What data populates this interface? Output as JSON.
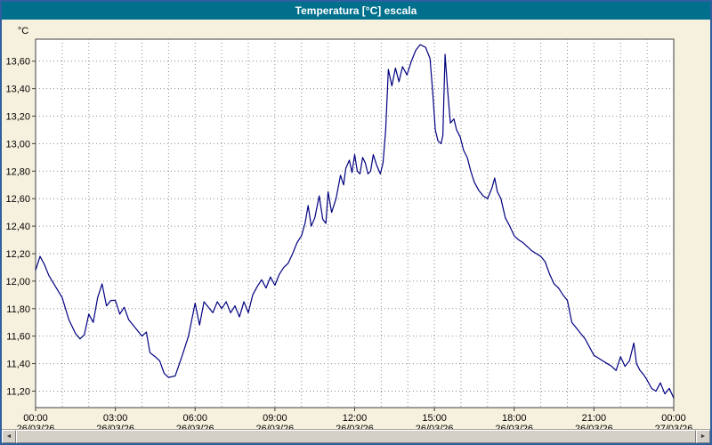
{
  "window": {
    "title": "Temperatura [°C] escala"
  },
  "colors": {
    "titlebar": "#00708d",
    "window_border": "#2f5f9e",
    "background": "#f6f1de",
    "plot_background": "#ffffff",
    "grid": "#8c8c8c",
    "axis": "#404040",
    "line": "#000080",
    "label_text": "#000000",
    "scrollbar_face": "#d4d0c8"
  },
  "scrollbar": {
    "left_arrow": "◄",
    "right_arrow": "►"
  },
  "chart_data": {
    "type": "line",
    "title": "Temperatura [°C] escala",
    "xlabel": "",
    "ylabel": "°C",
    "ylim": [
      11.08,
      13.76
    ],
    "x_range_minutes": [
      0,
      1440
    ],
    "x_minor_grid_minutes": 60,
    "grid": true,
    "legend": "none",
    "y_ticks": [
      {
        "v": 13.6,
        "label": "13,60"
      },
      {
        "v": 13.4,
        "label": "13,40"
      },
      {
        "v": 13.2,
        "label": "13,20"
      },
      {
        "v": 13.0,
        "label": "13,00"
      },
      {
        "v": 12.8,
        "label": "12,80"
      },
      {
        "v": 12.6,
        "label": "12,60"
      },
      {
        "v": 12.4,
        "label": "12,40"
      },
      {
        "v": 12.2,
        "label": "12,20"
      },
      {
        "v": 12.0,
        "label": "12,00"
      },
      {
        "v": 11.8,
        "label": "11,80"
      },
      {
        "v": 11.6,
        "label": "11,60"
      },
      {
        "v": 11.4,
        "label": "11,40"
      },
      {
        "v": 11.2,
        "label": "11,20"
      }
    ],
    "x_ticks": [
      {
        "m": 0,
        "time": "00:00",
        "date": "26/03/26"
      },
      {
        "m": 180,
        "time": "03:00",
        "date": "26/03/26"
      },
      {
        "m": 360,
        "time": "06:00",
        "date": "26/03/26"
      },
      {
        "m": 540,
        "time": "09:00",
        "date": "26/03/26"
      },
      {
        "m": 720,
        "time": "12:00",
        "date": "26/03/26"
      },
      {
        "m": 900,
        "time": "15:00",
        "date": "26/03/26"
      },
      {
        "m": 1080,
        "time": "18:00",
        "date": "26/03/26"
      },
      {
        "m": 1260,
        "time": "21:00",
        "date": "26/03/26"
      },
      {
        "m": 1440,
        "time": "00:00",
        "date": "27/03/26"
      }
    ],
    "series": [
      {
        "name": "Temperatura",
        "color": "#000080",
        "points": [
          [
            0,
            12.08
          ],
          [
            10,
            12.18
          ],
          [
            20,
            12.12
          ],
          [
            30,
            12.04
          ],
          [
            45,
            11.96
          ],
          [
            60,
            11.88
          ],
          [
            75,
            11.72
          ],
          [
            90,
            11.62
          ],
          [
            100,
            11.58
          ],
          [
            110,
            11.61
          ],
          [
            120,
            11.76
          ],
          [
            130,
            11.7
          ],
          [
            140,
            11.88
          ],
          [
            150,
            11.98
          ],
          [
            160,
            11.82
          ],
          [
            170,
            11.86
          ],
          [
            180,
            11.86
          ],
          [
            190,
            11.76
          ],
          [
            200,
            11.81
          ],
          [
            210,
            11.72
          ],
          [
            225,
            11.66
          ],
          [
            240,
            11.6
          ],
          [
            250,
            11.63
          ],
          [
            258,
            11.48
          ],
          [
            270,
            11.45
          ],
          [
            280,
            11.42
          ],
          [
            290,
            11.33
          ],
          [
            300,
            11.3
          ],
          [
            315,
            11.31
          ],
          [
            330,
            11.45
          ],
          [
            345,
            11.6
          ],
          [
            355,
            11.76
          ],
          [
            360,
            11.84
          ],
          [
            370,
            11.68
          ],
          [
            380,
            11.85
          ],
          [
            390,
            11.81
          ],
          [
            400,
            11.77
          ],
          [
            410,
            11.85
          ],
          [
            420,
            11.8
          ],
          [
            430,
            11.85
          ],
          [
            440,
            11.77
          ],
          [
            450,
            11.82
          ],
          [
            460,
            11.74
          ],
          [
            470,
            11.85
          ],
          [
            480,
            11.77
          ],
          [
            490,
            11.9
          ],
          [
            500,
            11.96
          ],
          [
            510,
            12.01
          ],
          [
            520,
            11.95
          ],
          [
            530,
            12.03
          ],
          [
            540,
            11.97
          ],
          [
            550,
            12.05
          ],
          [
            560,
            12.1
          ],
          [
            570,
            12.13
          ],
          [
            580,
            12.2
          ],
          [
            590,
            12.28
          ],
          [
            600,
            12.33
          ],
          [
            608,
            12.42
          ],
          [
            615,
            12.55
          ],
          [
            622,
            12.4
          ],
          [
            630,
            12.46
          ],
          [
            640,
            12.62
          ],
          [
            648,
            12.45
          ],
          [
            655,
            12.42
          ],
          [
            660,
            12.65
          ],
          [
            668,
            12.5
          ],
          [
            678,
            12.6
          ],
          [
            688,
            12.77
          ],
          [
            695,
            12.7
          ],
          [
            700,
            12.82
          ],
          [
            708,
            12.88
          ],
          [
            714,
            12.79
          ],
          [
            720,
            12.92
          ],
          [
            726,
            12.8
          ],
          [
            732,
            12.78
          ],
          [
            738,
            12.9
          ],
          [
            744,
            12.86
          ],
          [
            750,
            12.78
          ],
          [
            756,
            12.8
          ],
          [
            762,
            12.92
          ],
          [
            770,
            12.84
          ],
          [
            778,
            12.78
          ],
          [
            784,
            12.86
          ],
          [
            790,
            13.1
          ],
          [
            796,
            13.54
          ],
          [
            804,
            13.42
          ],
          [
            812,
            13.55
          ],
          [
            820,
            13.45
          ],
          [
            828,
            13.56
          ],
          [
            838,
            13.5
          ],
          [
            848,
            13.6
          ],
          [
            858,
            13.68
          ],
          [
            868,
            13.72
          ],
          [
            880,
            13.7
          ],
          [
            890,
            13.62
          ],
          [
            896,
            13.38
          ],
          [
            902,
            13.1
          ],
          [
            908,
            13.02
          ],
          [
            915,
            13.0
          ],
          [
            919,
            13.06
          ],
          [
            924,
            13.65
          ],
          [
            930,
            13.38
          ],
          [
            936,
            13.15
          ],
          [
            944,
            13.18
          ],
          [
            950,
            13.1
          ],
          [
            958,
            13.05
          ],
          [
            966,
            12.95
          ],
          [
            974,
            12.9
          ],
          [
            982,
            12.8
          ],
          [
            990,
            12.72
          ],
          [
            1000,
            12.66
          ],
          [
            1010,
            12.62
          ],
          [
            1020,
            12.6
          ],
          [
            1030,
            12.68
          ],
          [
            1036,
            12.75
          ],
          [
            1042,
            12.65
          ],
          [
            1050,
            12.6
          ],
          [
            1060,
            12.46
          ],
          [
            1070,
            12.4
          ],
          [
            1080,
            12.33
          ],
          [
            1090,
            12.3
          ],
          [
            1100,
            12.28
          ],
          [
            1110,
            12.25
          ],
          [
            1120,
            12.22
          ],
          [
            1130,
            12.2
          ],
          [
            1140,
            12.18
          ],
          [
            1150,
            12.14
          ],
          [
            1160,
            12.05
          ],
          [
            1170,
            11.98
          ],
          [
            1180,
            11.95
          ],
          [
            1190,
            11.9
          ],
          [
            1200,
            11.86
          ],
          [
            1210,
            11.7
          ],
          [
            1220,
            11.66
          ],
          [
            1230,
            11.62
          ],
          [
            1240,
            11.58
          ],
          [
            1250,
            11.52
          ],
          [
            1260,
            11.46
          ],
          [
            1270,
            11.44
          ],
          [
            1280,
            11.42
          ],
          [
            1290,
            11.4
          ],
          [
            1300,
            11.38
          ],
          [
            1310,
            11.35
          ],
          [
            1320,
            11.45
          ],
          [
            1330,
            11.38
          ],
          [
            1340,
            11.42
          ],
          [
            1350,
            11.55
          ],
          [
            1356,
            11.4
          ],
          [
            1364,
            11.35
          ],
          [
            1372,
            11.32
          ],
          [
            1380,
            11.28
          ],
          [
            1390,
            11.22
          ],
          [
            1400,
            11.2
          ],
          [
            1410,
            11.26
          ],
          [
            1420,
            11.18
          ],
          [
            1430,
            11.22
          ],
          [
            1440,
            11.15
          ]
        ]
      }
    ]
  }
}
